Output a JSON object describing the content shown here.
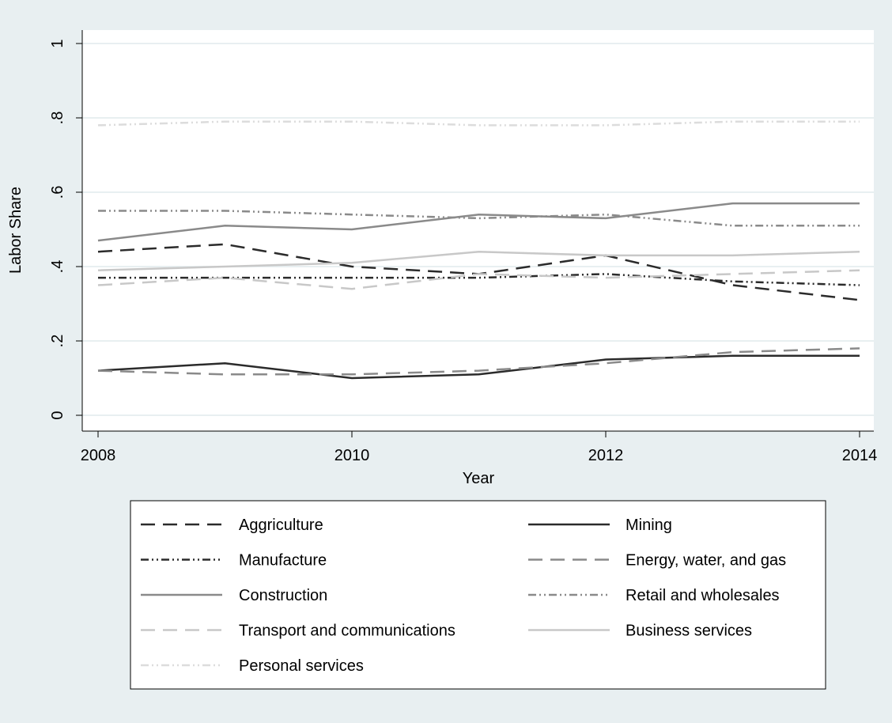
{
  "chart_data": {
    "type": "line",
    "xlabel": "Year",
    "ylabel": "Labor Share",
    "xlim": [
      2008,
      2014
    ],
    "ylim": [
      0,
      1
    ],
    "x_ticks": [
      2008,
      2010,
      2012,
      2014
    ],
    "x_tick_labels": [
      "2008",
      "2010",
      "2012",
      "2014"
    ],
    "y_ticks": [
      0,
      0.2,
      0.4,
      0.6,
      0.8,
      1
    ],
    "y_tick_labels": [
      "0",
      ".2",
      ".4",
      ".6",
      ".8",
      "1"
    ],
    "grid": true,
    "legend_position": "bottom",
    "x": [
      2008,
      2009,
      2010,
      2011,
      2012,
      2013,
      2014
    ],
    "series": [
      {
        "name": "Aggriculture",
        "values": [
          0.44,
          0.46,
          0.4,
          0.38,
          0.43,
          0.35,
          0.31
        ],
        "color": "#2b2b2b",
        "style": "dash"
      },
      {
        "name": "Mining",
        "values": [
          0.12,
          0.14,
          0.1,
          0.11,
          0.15,
          0.16,
          0.16
        ],
        "color": "#2b2b2b",
        "style": "solid"
      },
      {
        "name": "Manufacture",
        "values": [
          0.37,
          0.37,
          0.37,
          0.37,
          0.38,
          0.36,
          0.35
        ],
        "color": "#2b2b2b",
        "style": "dashdotdot"
      },
      {
        "name": "Energy, water, and gas",
        "values": [
          0.12,
          0.11,
          0.11,
          0.12,
          0.14,
          0.17,
          0.18
        ],
        "color": "#8a8a8a",
        "style": "dash"
      },
      {
        "name": "Construction",
        "values": [
          0.47,
          0.51,
          0.5,
          0.54,
          0.53,
          0.57,
          0.57
        ],
        "color": "#8a8a8a",
        "style": "solid"
      },
      {
        "name": "Retail and wholesales",
        "values": [
          0.55,
          0.55,
          0.54,
          0.53,
          0.54,
          0.51,
          0.51
        ],
        "color": "#8a8a8a",
        "style": "dashdotdot"
      },
      {
        "name": "Transport and communications",
        "values": [
          0.35,
          0.37,
          0.34,
          0.38,
          0.37,
          0.38,
          0.39
        ],
        "color": "#c8c8c8",
        "style": "dash"
      },
      {
        "name": "Business services",
        "values": [
          0.39,
          0.4,
          0.41,
          0.44,
          0.43,
          0.43,
          0.44
        ],
        "color": "#c8c8c8",
        "style": "solid"
      },
      {
        "name": "Personal services",
        "values": [
          0.78,
          0.79,
          0.79,
          0.78,
          0.78,
          0.79,
          0.79
        ],
        "color": "#dcdcdc",
        "style": "dashdotdot"
      }
    ]
  },
  "colors": {
    "background": "#e8eff1",
    "plot_background": "#ffffff",
    "grid": "#e8eff1"
  }
}
